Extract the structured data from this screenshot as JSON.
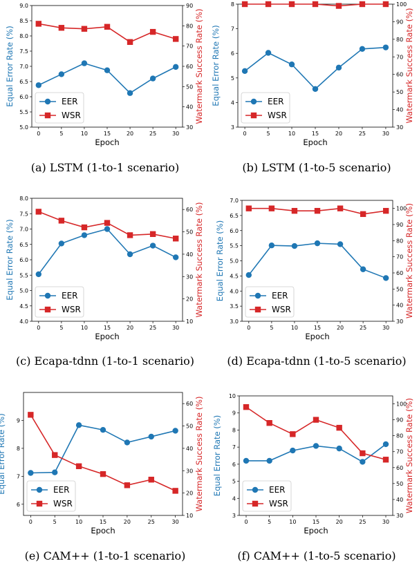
{
  "colors": {
    "eer": "#1f77b4",
    "wsr": "#d62728",
    "caption": "#000000"
  },
  "chart_data": [
    {
      "type": "line",
      "caption": "(a) LSTM (1-to-1 scenario)",
      "x": [
        0,
        5,
        10,
        15,
        20,
        25,
        30
      ],
      "xlabel": "Epoch",
      "ylabel": "Equal Error Rate (%)",
      "y2label": "Watermark Success Rate (%)",
      "ylim": [
        5.0,
        9.0
      ],
      "yticks": [
        "5.0",
        "5.5",
        "6.0",
        "6.5",
        "7.0",
        "7.5",
        "8.0",
        "8.5",
        "9.0"
      ],
      "y2lim": [
        30,
        90
      ],
      "y2ticks": [
        "30",
        "40",
        "50",
        "60",
        "70",
        "80",
        "90"
      ],
      "legend_location": "lower-left",
      "series": [
        {
          "name": "EER",
          "axis": "left",
          "marker": "circle",
          "values": [
            6.38,
            6.74,
            7.1,
            6.87,
            6.12,
            6.6,
            6.98
          ]
        },
        {
          "name": "WSR",
          "axis": "right",
          "marker": "square",
          "values": [
            81,
            79,
            78.5,
            79.5,
            72,
            77,
            73.5
          ]
        }
      ]
    },
    {
      "type": "line",
      "caption": "(b) LSTM (1-to-5 scenario)",
      "x": [
        0,
        5,
        10,
        15,
        20,
        25,
        30
      ],
      "xlabel": "Epoch",
      "ylabel": "Equal Error Rate (%)",
      "y2label": "Watermark Success Rate (%)",
      "ylim": [
        3,
        8
      ],
      "yticks": [
        "3",
        "4",
        "5",
        "6",
        "7",
        "8"
      ],
      "y2lim": [
        30,
        100
      ],
      "y2ticks": [
        "30",
        "40",
        "50",
        "60",
        "70",
        "80",
        "90",
        "100"
      ],
      "legend_location": "lower-left",
      "series": [
        {
          "name": "EER",
          "axis": "left",
          "marker": "circle",
          "values": [
            5.28,
            6.02,
            5.55,
            4.55,
            5.42,
            6.18,
            6.24
          ]
        },
        {
          "name": "WSR",
          "axis": "right",
          "marker": "square",
          "values": [
            100,
            100,
            100,
            100,
            99,
            100,
            100
          ]
        }
      ]
    },
    {
      "type": "line",
      "caption": "(c) Ecapa-tdnn (1-to-1 scenario)",
      "x": [
        0,
        5,
        10,
        15,
        20,
        25,
        30
      ],
      "xlabel": "Epoch",
      "ylabel": "Equal Error Rate (%)",
      "y2label": "Watermark Success Rate (%)",
      "ylim": [
        4.0,
        8.0
      ],
      "yticks": [
        "4.0",
        "4.5",
        "5.0",
        "5.5",
        "6.0",
        "6.5",
        "7.0",
        "7.5",
        "8.0"
      ],
      "y2lim": [
        10,
        65
      ],
      "y2ticks": [
        "10",
        "20",
        "30",
        "40",
        "50",
        "60"
      ],
      "legend_location": "lower-left",
      "series": [
        {
          "name": "EER",
          "axis": "left",
          "marker": "circle",
          "values": [
            5.53,
            6.53,
            6.8,
            7.0,
            6.18,
            6.46,
            6.08
          ]
        },
        {
          "name": "WSR",
          "axis": "right",
          "marker": "square",
          "values": [
            59,
            55,
            52,
            54,
            48.5,
            49,
            47
          ]
        }
      ]
    },
    {
      "type": "line",
      "caption": "(d) Ecapa-tdnn (1-to-5 scenario)",
      "x": [
        0,
        5,
        10,
        15,
        20,
        25,
        30
      ],
      "xlabel": "Epoch",
      "ylabel": "Equal Error Rate (%)",
      "y2label": "Watermark Success Rate (%)",
      "ylim": [
        3.0,
        7.0
      ],
      "yticks": [
        "3.0",
        "3.5",
        "4.0",
        "4.5",
        "5.0",
        "5.5",
        "6.0",
        "6.5",
        "7.0"
      ],
      "y2lim": [
        30,
        105
      ],
      "y2ticks": [
        "30",
        "40",
        "50",
        "60",
        "70",
        "80",
        "90",
        "100"
      ],
      "legend_location": "lower-left",
      "series": [
        {
          "name": "EER",
          "axis": "left",
          "marker": "circle",
          "values": [
            4.53,
            5.51,
            5.49,
            5.58,
            5.55,
            4.72,
            4.43
          ]
        },
        {
          "name": "WSR",
          "axis": "right",
          "marker": "square",
          "values": [
            100,
            100,
            98.5,
            98.5,
            100,
            96.5,
            98.5
          ]
        }
      ]
    },
    {
      "type": "line",
      "caption": "(e) CAM++ (1-to-1 scenario)",
      "x": [
        0,
        5,
        10,
        15,
        20,
        25,
        30
      ],
      "xlabel": "Epoch",
      "ylabel": "Equal Error Rate (%)",
      "y2label": "Watermark Success Rate (%)",
      "ylim": [
        5.6,
        10.0
      ],
      "yticks": [
        "6",
        "7",
        "8",
        "9"
      ],
      "y2lim": [
        10,
        65
      ],
      "y2ticks": [
        "10",
        "20",
        "30",
        "40",
        "50",
        "60"
      ],
      "legend_location": "lower-left",
      "series": [
        {
          "name": "EER",
          "axis": "left",
          "marker": "circle",
          "values": [
            7.12,
            7.14,
            8.83,
            8.66,
            8.21,
            8.42,
            8.63
          ]
        },
        {
          "name": "WSR",
          "axis": "right",
          "marker": "square",
          "values": [
            55,
            37,
            32,
            28.5,
            23.5,
            26,
            21
          ]
        }
      ]
    },
    {
      "type": "line",
      "caption": "(f) CAM++ (1-to-5 scenario)",
      "x": [
        0,
        5,
        10,
        15,
        20,
        25,
        30
      ],
      "xlabel": "Epoch",
      "ylabel": "Equal Error Rate (%)",
      "y2label": "Watermark Success Rate (%)",
      "ylim": [
        3,
        10
      ],
      "yticks": [
        "3",
        "4",
        "5",
        "6",
        "7",
        "8",
        "9",
        "10"
      ],
      "y2lim": [
        30,
        105
      ],
      "y2ticks": [
        "30",
        "40",
        "50",
        "60",
        "70",
        "80",
        "90",
        "100"
      ],
      "legend_location": "lower-left",
      "series": [
        {
          "name": "EER",
          "axis": "left",
          "marker": "circle",
          "values": [
            6.2,
            6.2,
            6.8,
            7.07,
            6.92,
            6.14,
            7.17
          ]
        },
        {
          "name": "WSR",
          "axis": "right",
          "marker": "square",
          "values": [
            98,
            88,
            81,
            90,
            85,
            69,
            65
          ]
        }
      ]
    }
  ]
}
